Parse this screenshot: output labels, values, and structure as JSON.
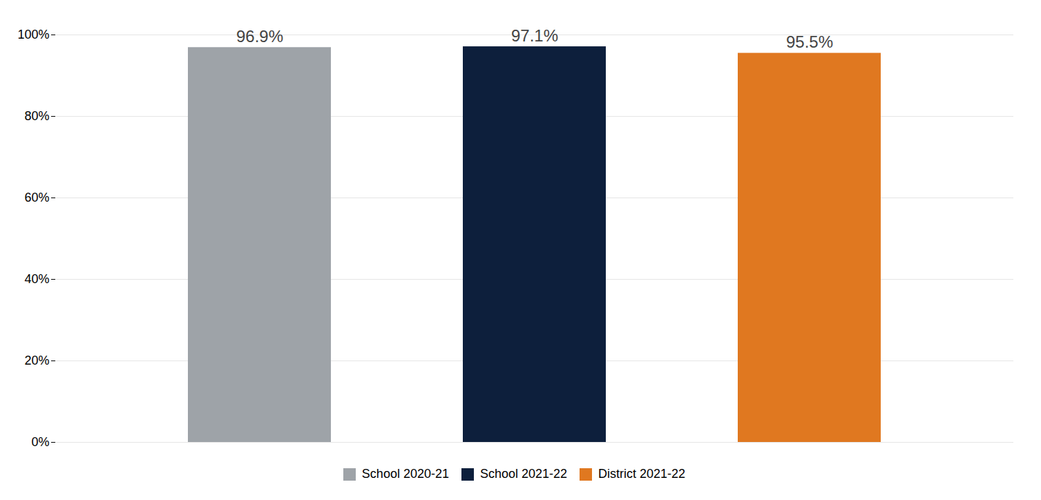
{
  "chart_data": {
    "type": "bar",
    "categories": [
      "School 2020-21",
      "School 2021-22",
      "District 2021-22"
    ],
    "values": [
      0.969,
      0.971,
      0.955
    ],
    "value_labels": [
      "96.9%",
      "97.1%",
      "95.5%"
    ],
    "colors": [
      "#9EA3A8",
      "#0D1F3C",
      "#E07820"
    ],
    "ylim": [
      0,
      1.0
    ],
    "yticks": [
      {
        "value": 0.0,
        "label": "0%"
      },
      {
        "value": 0.2,
        "label": "20%"
      },
      {
        "value": 0.4,
        "label": "40%"
      },
      {
        "value": 0.6,
        "label": "60%"
      },
      {
        "value": 0.8,
        "label": "80%"
      },
      {
        "value": 1.0,
        "label": "100%"
      }
    ],
    "grid": true,
    "legend": "bottom",
    "data_labels": true,
    "tick_labels": "y"
  }
}
